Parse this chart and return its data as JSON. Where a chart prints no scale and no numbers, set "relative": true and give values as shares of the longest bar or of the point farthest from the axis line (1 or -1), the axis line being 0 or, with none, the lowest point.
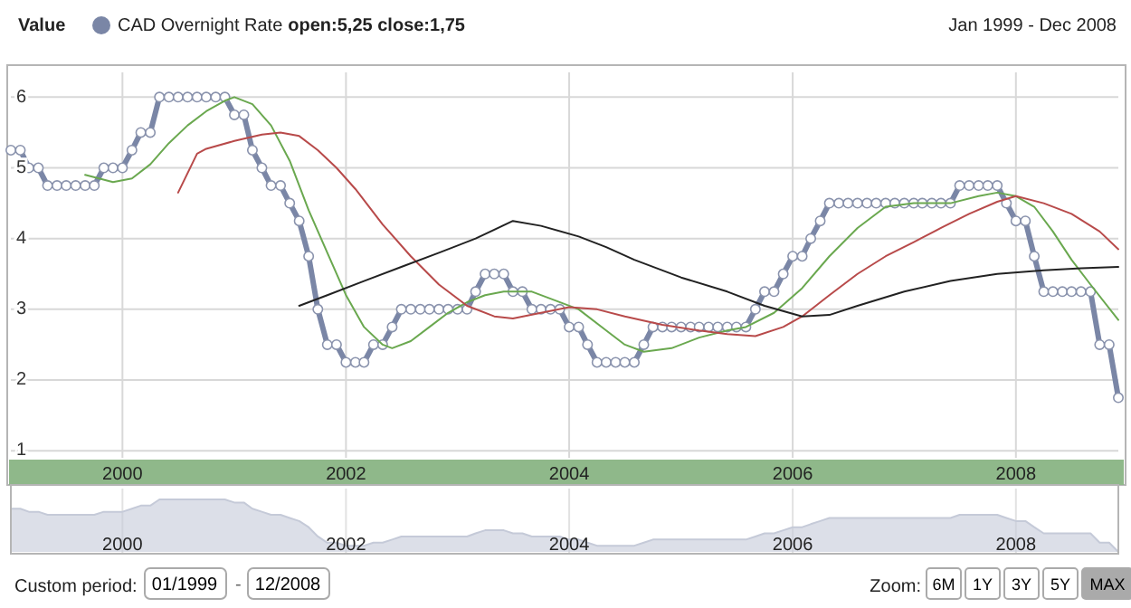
{
  "chart_data": [
    {
      "type": "line",
      "legend_title": "Value",
      "subtitle": "Jan 1999 - Dec 2008",
      "legend": "top left",
      "grid": true,
      "x": [
        "1999-01",
        "1999-02",
        "1999-03",
        "1999-04",
        "1999-05",
        "1999-06",
        "1999-07",
        "1999-08",
        "1999-09",
        "1999-10",
        "1999-11",
        "1999-12",
        "2000-01",
        "2000-02",
        "2000-03",
        "2000-04",
        "2000-05",
        "2000-06",
        "2000-07",
        "2000-08",
        "2000-09",
        "2000-10",
        "2000-11",
        "2000-12",
        "2001-01",
        "2001-02",
        "2001-03",
        "2001-04",
        "2001-05",
        "2001-06",
        "2001-07",
        "2001-08",
        "2001-09",
        "2001-10",
        "2001-11",
        "2001-12",
        "2002-01",
        "2002-02",
        "2002-03",
        "2002-04",
        "2002-05",
        "2002-06",
        "2002-07",
        "2002-08",
        "2002-09",
        "2002-10",
        "2002-11",
        "2002-12",
        "2003-01",
        "2003-02",
        "2003-03",
        "2003-04",
        "2003-05",
        "2003-06",
        "2003-07",
        "2003-08",
        "2003-09",
        "2003-10",
        "2003-11",
        "2003-12",
        "2004-01",
        "2004-02",
        "2004-03",
        "2004-04",
        "2004-05",
        "2004-06",
        "2004-07",
        "2004-08",
        "2004-09",
        "2004-10",
        "2004-11",
        "2004-12",
        "2005-01",
        "2005-02",
        "2005-03",
        "2005-04",
        "2005-05",
        "2005-06",
        "2005-07",
        "2005-08",
        "2005-09",
        "2005-10",
        "2005-11",
        "2005-12",
        "2006-01",
        "2006-02",
        "2006-03",
        "2006-04",
        "2006-05",
        "2006-06",
        "2006-07",
        "2006-08",
        "2006-09",
        "2006-10",
        "2006-11",
        "2006-12",
        "2007-01",
        "2007-02",
        "2007-03",
        "2007-04",
        "2007-05",
        "2007-06",
        "2007-07",
        "2007-08",
        "2007-09",
        "2007-10",
        "2007-11",
        "2007-12",
        "2008-01",
        "2008-02",
        "2008-03",
        "2008-04",
        "2008-05",
        "2008-06",
        "2008-07",
        "2008-08",
        "2008-09",
        "2008-10",
        "2008-11",
        "2008-12"
      ],
      "xlim": [
        "1999-01",
        "2008-12"
      ],
      "xticks": [
        {
          "value": "2000-01",
          "label": "2000"
        },
        {
          "value": "2002-01",
          "label": "2002"
        },
        {
          "value": "2004-01",
          "label": "2004"
        },
        {
          "value": "2006-01",
          "label": "2006"
        },
        {
          "value": "2008-01",
          "label": "2008"
        }
      ],
      "ylim": [
        0.9,
        6.35
      ],
      "yticks": [
        1,
        2,
        3,
        4,
        5,
        6
      ],
      "series": [
        {
          "name": "CAD Overnight Rate",
          "color": "#7a86a6",
          "marker": "circle",
          "values": [
            5.25,
            5.25,
            5,
            5,
            4.75,
            4.75,
            4.75,
            4.75,
            4.75,
            4.75,
            5,
            5,
            5,
            5.25,
            5.5,
            5.5,
            6,
            6,
            6,
            6,
            6,
            6,
            6,
            6,
            5.75,
            5.75,
            5.25,
            5,
            4.75,
            4.75,
            4.5,
            4.25,
            3.75,
            3,
            2.5,
            2.5,
            2.25,
            2.25,
            2.25,
            2.5,
            2.5,
            2.75,
            3,
            3,
            3,
            3,
            3,
            3,
            3,
            3,
            3.25,
            3.5,
            3.5,
            3.5,
            3.25,
            3.25,
            3,
            3,
            3,
            3,
            2.75,
            2.75,
            2.5,
            2.25,
            2.25,
            2.25,
            2.25,
            2.25,
            2.5,
            2.75,
            2.75,
            2.75,
            2.75,
            2.75,
            2.75,
            2.75,
            2.75,
            2.75,
            2.75,
            2.75,
            3,
            3.25,
            3.25,
            3.5,
            3.75,
            3.75,
            4,
            4.25,
            4.5,
            4.5,
            4.5,
            4.5,
            4.5,
            4.5,
            4.5,
            4.5,
            4.5,
            4.5,
            4.5,
            4.5,
            4.5,
            4.5,
            4.75,
            4.75,
            4.75,
            4.75,
            4.75,
            4.5,
            4.25,
            4.25,
            3.75,
            3.25,
            3.25,
            3.25,
            3.25,
            3.25,
            3.25,
            2.5,
            2.5,
            1.75
          ]
        },
        {
          "color": "#6aa84f",
          "marker": "none",
          "x": [
            "1999-09",
            "1999-12",
            "2000-02",
            "2000-04",
            "2000-06",
            "2000-08",
            "2000-10",
            "2000-12",
            "2001-01",
            "2001-03",
            "2001-05",
            "2001-07",
            "2001-09",
            "2001-11",
            "2002-01",
            "2002-03",
            "2002-05",
            "2002-06",
            "2002-08",
            "2002-10",
            "2002-12",
            "2003-02",
            "2003-04",
            "2003-06",
            "2003-09",
            "2003-11",
            "2004-02",
            "2004-05",
            "2004-07",
            "2004-09",
            "2004-12",
            "2005-03",
            "2005-06",
            "2005-08",
            "2005-11",
            "2006-02",
            "2006-05",
            "2006-08",
            "2006-11",
            "2007-02",
            "2007-06",
            "2007-09",
            "2007-11",
            "2008-01",
            "2008-03",
            "2008-05",
            "2008-07",
            "2008-09",
            "2008-12"
          ],
          "values": [
            4.9,
            4.8,
            4.85,
            5.05,
            5.35,
            5.6,
            5.8,
            5.95,
            6.0,
            5.9,
            5.6,
            5.1,
            4.4,
            3.8,
            3.2,
            2.75,
            2.5,
            2.45,
            2.55,
            2.75,
            2.95,
            3.1,
            3.2,
            3.25,
            3.25,
            3.15,
            3.0,
            2.7,
            2.5,
            2.4,
            2.45,
            2.6,
            2.7,
            2.75,
            2.95,
            3.3,
            3.75,
            4.15,
            4.45,
            4.5,
            4.5,
            4.6,
            4.65,
            4.6,
            4.45,
            4.1,
            3.7,
            3.35,
            2.85
          ]
        },
        {
          "color": "#b84a4a",
          "marker": "none",
          "x": [
            "2000-07",
            "2000-09",
            "2000-10",
            "2001-01",
            "2001-04",
            "2001-06",
            "2001-08",
            "2001-10",
            "2001-12",
            "2002-02",
            "2002-05",
            "2002-08",
            "2002-11",
            "2003-02",
            "2003-05",
            "2003-07",
            "2003-10",
            "2004-01",
            "2004-04",
            "2004-07",
            "2004-11",
            "2005-03",
            "2005-06",
            "2005-09",
            "2005-12",
            "2006-02",
            "2006-05",
            "2006-08",
            "2006-11",
            "2007-02",
            "2007-05",
            "2007-08",
            "2007-11",
            "2008-01",
            "2008-04",
            "2008-07",
            "2008-10",
            "2008-12"
          ],
          "values": [
            4.65,
            5.2,
            5.27,
            5.38,
            5.47,
            5.5,
            5.45,
            5.25,
            5.0,
            4.7,
            4.2,
            3.75,
            3.35,
            3.05,
            2.9,
            2.87,
            2.95,
            3.03,
            3.0,
            2.9,
            2.78,
            2.7,
            2.65,
            2.62,
            2.75,
            2.9,
            3.2,
            3.5,
            3.75,
            3.95,
            4.15,
            4.35,
            4.52,
            4.6,
            4.5,
            4.35,
            4.1,
            3.85
          ]
        },
        {
          "color": "#222222",
          "marker": "none",
          "x": [
            "2001-08",
            "2001-11",
            "2002-03",
            "2002-07",
            "2002-11",
            "2003-03",
            "2003-07",
            "2003-10",
            "2004-02",
            "2004-05",
            "2004-08",
            "2005-01",
            "2005-06",
            "2005-10",
            "2006-02",
            "2006-05",
            "2006-08",
            "2007-01",
            "2007-06",
            "2007-11",
            "2008-04",
            "2008-08",
            "2008-12"
          ],
          "values": [
            3.05,
            3.2,
            3.4,
            3.6,
            3.8,
            4.0,
            4.25,
            4.18,
            4.03,
            3.88,
            3.7,
            3.45,
            3.25,
            3.05,
            2.9,
            2.92,
            3.05,
            3.25,
            3.4,
            3.5,
            3.55,
            3.58,
            3.6
          ]
        }
      ],
      "annotations": [
        "open:5,25 close:1,75",
        "Custom period:",
        "01/1999",
        "-",
        "12/2008",
        "Zoom:",
        "6M",
        "1Y",
        "3Y",
        "5Y",
        "MAX"
      ]
    },
    {
      "type": "area",
      "relative": true,
      "color": "#c5cad8",
      "grid": "x",
      "x": [
        "1999-01",
        "1999-02",
        "1999-03",
        "1999-04",
        "1999-05",
        "1999-06",
        "1999-07",
        "1999-08",
        "1999-09",
        "1999-10",
        "1999-11",
        "1999-12",
        "2000-01",
        "2000-02",
        "2000-03",
        "2000-04",
        "2000-05",
        "2000-06",
        "2000-07",
        "2000-08",
        "2000-09",
        "2000-10",
        "2000-11",
        "2000-12",
        "2001-01",
        "2001-02",
        "2001-03",
        "2001-04",
        "2001-05",
        "2001-06",
        "2001-07",
        "2001-08",
        "2001-09",
        "2001-10",
        "2001-11",
        "2001-12",
        "2002-01",
        "2002-02",
        "2002-03",
        "2002-04",
        "2002-05",
        "2002-06",
        "2002-07",
        "2002-08",
        "2002-09",
        "2002-10",
        "2002-11",
        "2002-12",
        "2003-01",
        "2003-02",
        "2003-03",
        "2003-04",
        "2003-05",
        "2003-06",
        "2003-07",
        "2003-08",
        "2003-09",
        "2003-10",
        "2003-11",
        "2003-12",
        "2004-01",
        "2004-02",
        "2004-03",
        "2004-04",
        "2004-05",
        "2004-06",
        "2004-07",
        "2004-08",
        "2004-09",
        "2004-10",
        "2004-11",
        "2004-12",
        "2005-01",
        "2005-02",
        "2005-03",
        "2005-04",
        "2005-05",
        "2005-06",
        "2005-07",
        "2005-08",
        "2005-09",
        "2005-10",
        "2005-11",
        "2005-12",
        "2006-01",
        "2006-02",
        "2006-03",
        "2006-04",
        "2006-05",
        "2006-06",
        "2006-07",
        "2006-08",
        "2006-09",
        "2006-10",
        "2006-11",
        "2006-12",
        "2007-01",
        "2007-02",
        "2007-03",
        "2007-04",
        "2007-05",
        "2007-06",
        "2007-07",
        "2007-08",
        "2007-09",
        "2007-10",
        "2007-11",
        "2007-12",
        "2008-01",
        "2008-02",
        "2008-03",
        "2008-04",
        "2008-05",
        "2008-06",
        "2008-07",
        "2008-08",
        "2008-09",
        "2008-10",
        "2008-11",
        "2008-12"
      ],
      "xlim": [
        "1999-01",
        "2008-12"
      ],
      "xticks": [
        {
          "value": "2000-01",
          "label": "2000"
        },
        {
          "value": "2002-01",
          "label": "2002"
        },
        {
          "value": "2004-01",
          "label": "2004"
        },
        {
          "value": "2006-01",
          "label": "2006"
        },
        {
          "value": "2008-01",
          "label": "2008"
        }
      ],
      "values": [
        0.824,
        0.824,
        0.765,
        0.765,
        0.706,
        0.706,
        0.706,
        0.706,
        0.706,
        0.706,
        0.765,
        0.765,
        0.765,
        0.824,
        0.882,
        0.882,
        1,
        1,
        1,
        1,
        1,
        1,
        1,
        1,
        0.941,
        0.941,
        0.824,
        0.765,
        0.706,
        0.706,
        0.647,
        0.588,
        0.471,
        0.294,
        0.176,
        0.176,
        0.118,
        0.118,
        0.118,
        0.176,
        0.176,
        0.235,
        0.294,
        0.294,
        0.294,
        0.294,
        0.294,
        0.294,
        0.294,
        0.294,
        0.353,
        0.412,
        0.412,
        0.412,
        0.353,
        0.353,
        0.294,
        0.294,
        0.294,
        0.294,
        0.235,
        0.235,
        0.176,
        0.118,
        0.118,
        0.118,
        0.118,
        0.118,
        0.176,
        0.235,
        0.235,
        0.235,
        0.235,
        0.235,
        0.235,
        0.235,
        0.235,
        0.235,
        0.235,
        0.235,
        0.294,
        0.353,
        0.353,
        0.412,
        0.471,
        0.471,
        0.529,
        0.588,
        0.647,
        0.647,
        0.647,
        0.647,
        0.647,
        0.647,
        0.647,
        0.647,
        0.647,
        0.647,
        0.647,
        0.647,
        0.647,
        0.647,
        0.706,
        0.706,
        0.706,
        0.706,
        0.706,
        0.647,
        0.588,
        0.588,
        0.471,
        0.353,
        0.353,
        0.353,
        0.353,
        0.353,
        0.353,
        0.176,
        0.176,
        0
      ]
    }
  ]
}
